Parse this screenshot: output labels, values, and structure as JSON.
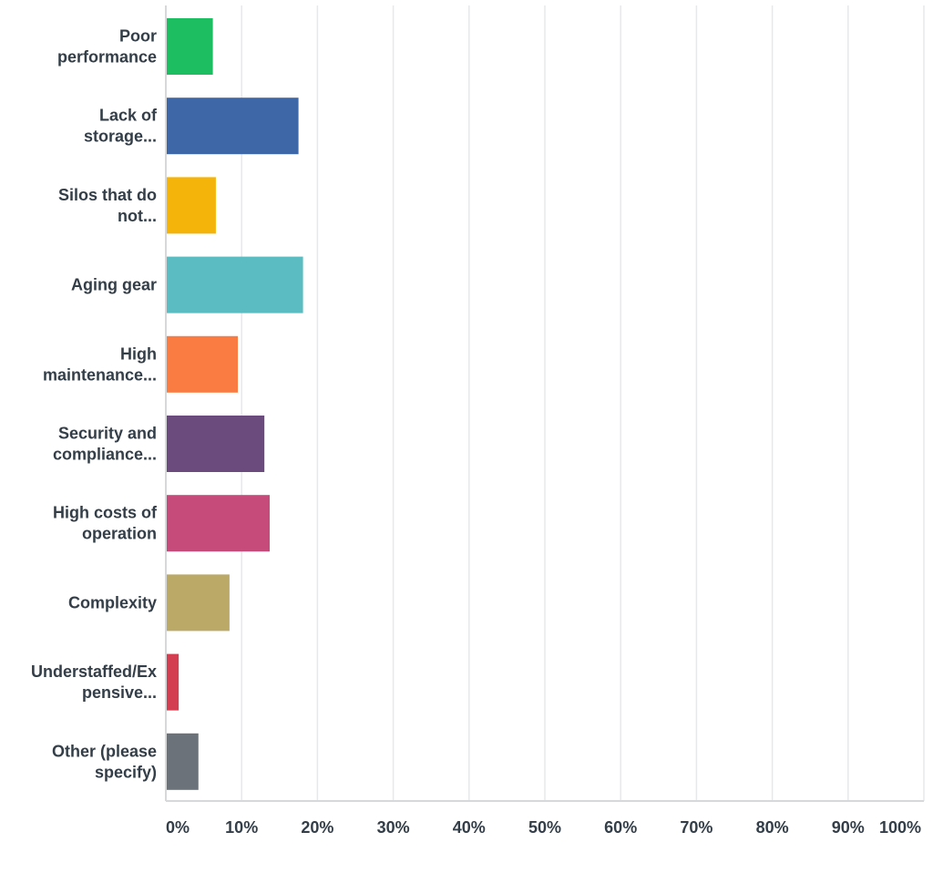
{
  "chart_data": {
    "type": "bar",
    "orientation": "horizontal",
    "categories": [
      [
        "Poor",
        "performance"
      ],
      [
        "Lack of",
        "storage..."
      ],
      [
        "Silos that do",
        "not..."
      ],
      [
        "Aging gear"
      ],
      [
        "High",
        "maintenance..."
      ],
      [
        "Security and",
        "compliance..."
      ],
      [
        "High costs of",
        "operation"
      ],
      [
        "Complexity"
      ],
      [
        "Understaffed/Ex",
        "pensive..."
      ],
      [
        "Other (please",
        "specify)"
      ]
    ],
    "values": [
      6.2,
      17.5,
      6.6,
      18.1,
      9.5,
      13.0,
      13.7,
      8.4,
      1.7,
      4.3
    ],
    "colors": [
      "#1dbd61",
      "#3e67a8",
      "#f5b40a",
      "#5bbcc2",
      "#fa7c42",
      "#6b4a7d",
      "#c64a7a",
      "#bba968",
      "#d33f51",
      "#6c727a"
    ],
    "xlim": [
      0,
      100
    ],
    "x_ticks": [
      0,
      10,
      20,
      30,
      40,
      50,
      60,
      70,
      80,
      90,
      100
    ],
    "x_tick_labels": [
      "0%",
      "10%",
      "20%",
      "30%",
      "40%",
      "50%",
      "60%",
      "70%",
      "80%",
      "90%",
      "100%"
    ],
    "grid": true,
    "title": "",
    "xlabel": "",
    "ylabel": ""
  }
}
